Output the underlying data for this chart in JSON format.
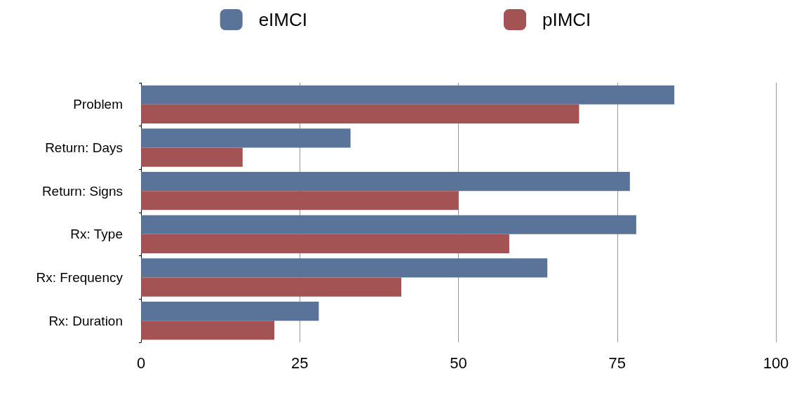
{
  "chart_data": {
    "type": "bar",
    "orientation": "horizontal",
    "categories": [
      "Problem",
      "Return: Days",
      "Return: Signs",
      "Rx: Type",
      "Rx: Frequency",
      "Rx: Duration"
    ],
    "series": [
      {
        "name": "eIMCI",
        "color": "#5a7399",
        "values": [
          84,
          33,
          77,
          78,
          64,
          28
        ]
      },
      {
        "name": "pIMCI",
        "color": "#a35353",
        "values": [
          69,
          16,
          50,
          58,
          41,
          21
        ]
      }
    ],
    "xlim": [
      0,
      100
    ],
    "xticks": [
      0,
      25,
      50,
      75,
      100
    ],
    "grid": "x",
    "legend": "top"
  }
}
